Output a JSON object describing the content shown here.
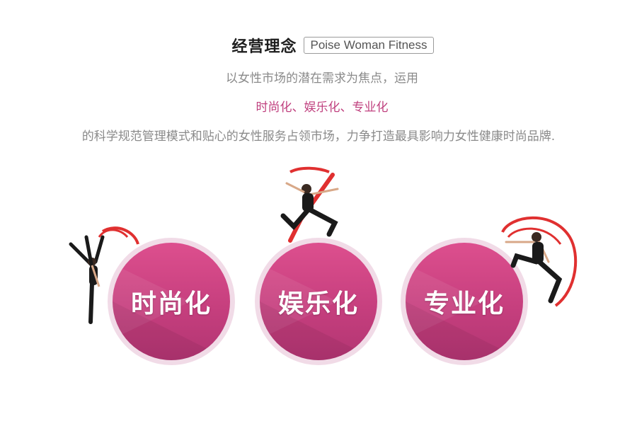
{
  "header": {
    "title": "经营理念",
    "subtitle": "Poise Woman Fitness"
  },
  "intro": {
    "line1": "以女性市场的潜在需求为焦点，运用",
    "line2": "时尚化、娱乐化、专业化",
    "line3": "的科学规范管理模式和贴心的女性服务占领市场，力争打造最具影响力女性健康时尚品牌."
  },
  "circles": [
    {
      "label": "时尚化"
    },
    {
      "label": "娱乐化"
    },
    {
      "label": "专业化"
    }
  ],
  "colors": {
    "accent": "#c0417f",
    "circle_top": "#dd4f8e",
    "circle_bottom": "#b23572",
    "ribbon": "#e03030"
  }
}
